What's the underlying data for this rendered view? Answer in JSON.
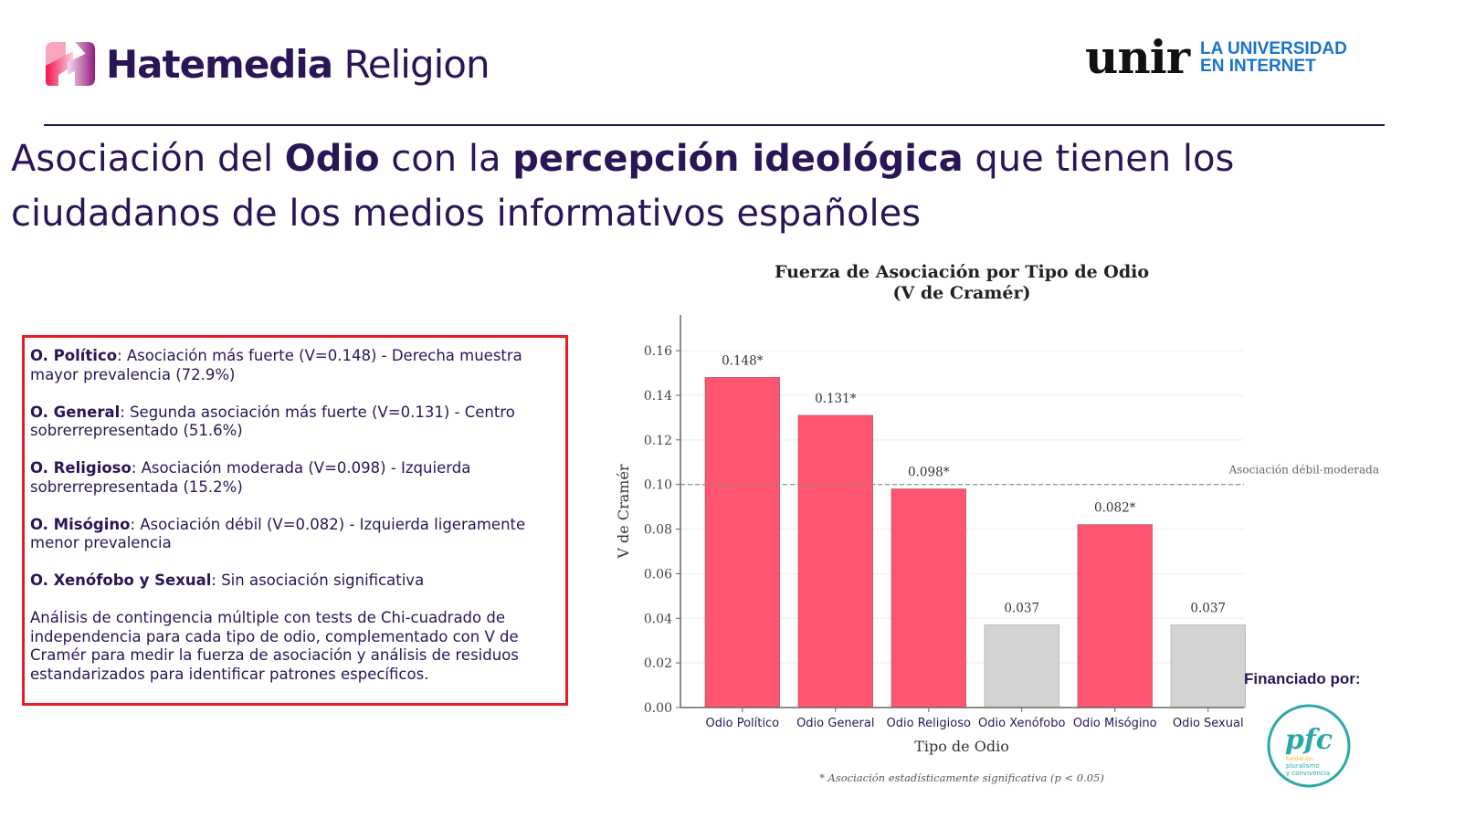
{
  "header": {
    "brand_bold": "Hatemedia",
    "brand_light": "Religion",
    "partner_logo_text": "unir",
    "partner_tagline_line1": "LA UNIVERSIDAD",
    "partner_tagline_line2": "EN INTERNET"
  },
  "title": {
    "part1": "Asociación del ",
    "bold1": "Odio",
    "part2": " con la ",
    "bold2": "percepción ideológica",
    "part3": " que tienen los ciudadanos de los medios informativos españoles"
  },
  "findings": [
    {
      "label": "O. Político",
      "text": ": Asociación más fuerte (V=0.148) - Derecha muestra mayor prevalencia (72.9%)"
    },
    {
      "label": "O. General",
      "text": ": Segunda asociación más fuerte (V=0.131) - Centro sobrerrepresentado (51.6%)"
    },
    {
      "label": "O. Religioso",
      "text": ": Asociación moderada (V=0.098) - Izquierda sobrerrepresentada (15.2%)"
    },
    {
      "label": "O. Misógino",
      "text": ": Asociación débil (V=0.082) - Izquierda ligeramente menor prevalencia"
    },
    {
      "label": "O. Xenófobo y Sexual",
      "text": ": Sin asociación significativa"
    }
  ],
  "methodology": "Análisis de contingencia múltiple con tests de Chi-cuadrado de independencia para cada tipo de odio, complementado con V de Cramér para medir la fuerza de asociación y análisis de residuos estandarizados para identificar patrones específicos.",
  "funding": {
    "label": "Financiado por:",
    "logo_mark": "pfc",
    "logo_line1": "fundación",
    "logo_line2": "pluralismo",
    "logo_line3": "y convivencia"
  },
  "colors": {
    "brand_purple": "#2a1557",
    "significant_bar": "#ff5570",
    "nonsignificant_bar": "#d3d3d3",
    "box_border": "#ee1b24",
    "partner_blue": "#1a73c9",
    "pfc_teal": "#2aa8a6",
    "pfc_yellow": "#f5b21a"
  },
  "chart_data": {
    "type": "bar",
    "title_line1": "Fuerza de Asociación por Tipo de Odio",
    "title_line2": "(V de Cramér)",
    "xlabel": "Tipo de Odio",
    "ylabel": "V de Cramér",
    "categories": [
      "Odio Político",
      "Odio General",
      "Odio Religioso",
      "Odio Xenófobo",
      "Odio Misógino",
      "Odio Sexual"
    ],
    "values": [
      0.148,
      0.131,
      0.098,
      0.037,
      0.082,
      0.037
    ],
    "significant": [
      true,
      true,
      true,
      false,
      true,
      false
    ],
    "data_labels": [
      "0.148*",
      "0.131*",
      "0.098*",
      "0.037",
      "0.082*",
      "0.037"
    ],
    "ylim": [
      0,
      0.176
    ],
    "yticks": [
      0.0,
      0.02,
      0.04,
      0.06,
      0.08,
      0.1,
      0.12,
      0.14,
      0.16
    ],
    "ytick_labels": [
      "0.00",
      "0.02",
      "0.04",
      "0.06",
      "0.08",
      "0.10",
      "0.12",
      "0.14",
      "0.16"
    ],
    "grid": true,
    "reference_line": {
      "value": 0.1,
      "label": "Asociación débil-moderada",
      "style": "dashed"
    },
    "footnote": "* Asociación estadísticamente significativa (p < 0.05)"
  }
}
